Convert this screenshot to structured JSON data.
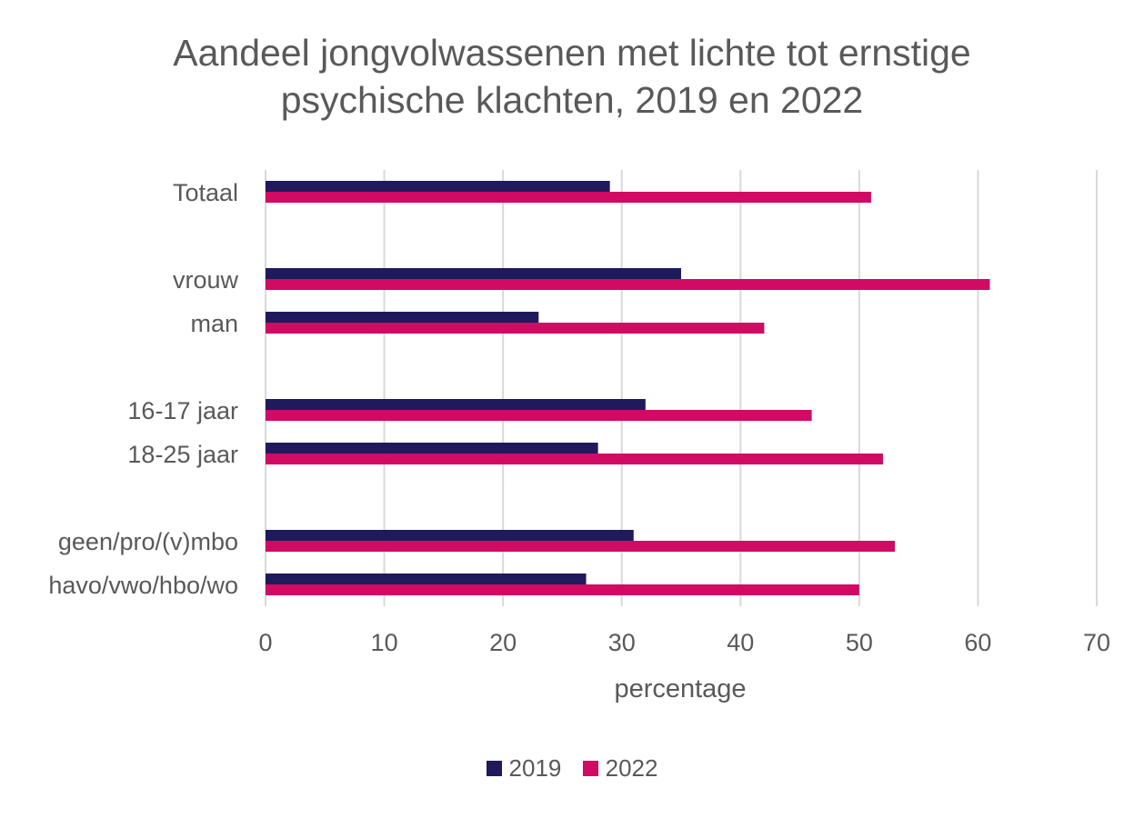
{
  "chart_data": {
    "type": "bar",
    "orientation": "horizontal",
    "title_lines": [
      "Aandeel jongvolwassenen met lichte tot ernstige",
      "psychische klachten, 2019 en 2022"
    ],
    "xlabel": "percentage",
    "ylabel": "",
    "xlim": [
      0,
      70
    ],
    "x_ticks": [
      0,
      10,
      20,
      30,
      40,
      50,
      60,
      70
    ],
    "grid": true,
    "legend_position": "bottom",
    "categories": [
      "Totaal",
      "",
      "vrouw",
      "man",
      "",
      "16-17 jaar",
      "18-25 jaar",
      "",
      "geen/pro/(v)mbo",
      "havo/vwo/hbo/wo"
    ],
    "series": [
      {
        "name": "2019",
        "color": "#1f1a5c",
        "values": [
          29,
          null,
          35,
          23,
          null,
          32,
          28,
          null,
          31,
          27
        ]
      },
      {
        "name": "2022",
        "color": "#d10a64",
        "values": [
          51,
          null,
          61,
          42,
          null,
          46,
          52,
          null,
          53,
          50
        ]
      }
    ]
  }
}
